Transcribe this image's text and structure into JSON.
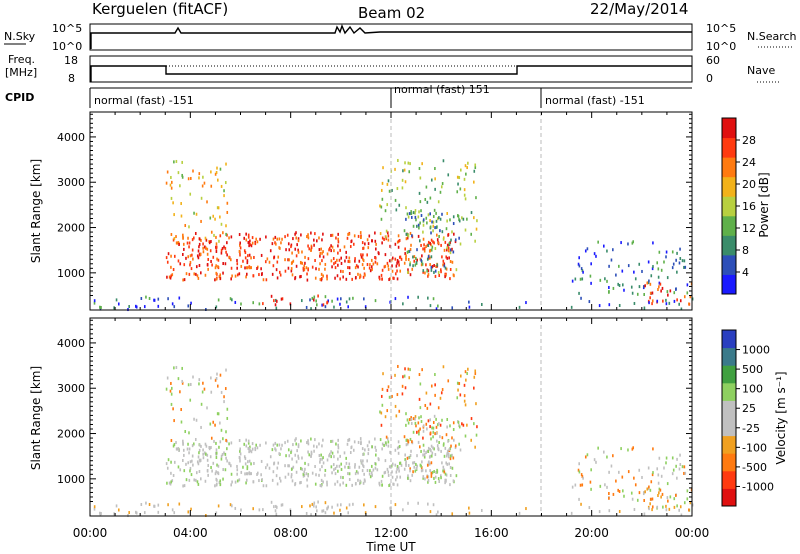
{
  "header": {
    "station": "Kerguelen (fitACF)",
    "beam": "Beam 02",
    "date": "22/May/2014"
  },
  "top_panels": {
    "nsky_label": "N.Sky",
    "nsky_ticks": [
      "10^5",
      "10^0"
    ],
    "nsearch_label": "N.Search",
    "freq_label": [
      "Freq.",
      "[MHz]"
    ],
    "freq_ticks": [
      "18",
      "8"
    ],
    "nave_label": "Nave",
    "nave_ticks": [
      "60",
      "0"
    ],
    "cpid_label": "CPID",
    "cpid_segments": [
      "normal (fast) -151",
      "normal (fast) 151",
      "normal (fast) -151"
    ]
  },
  "chart_data": [
    {
      "type": "heatmap",
      "name": "power",
      "ylabel": "Slant Range [km]",
      "ylim": [
        180,
        4550
      ],
      "yticks": [
        "1000",
        "2000",
        "3000",
        "4000"
      ],
      "xlabel": "Time UT",
      "xticks": [
        "00:00",
        "04:00",
        "08:00",
        "12:00",
        "16:00",
        "20:00",
        "00:00"
      ],
      "colorbar_label": "Power [dB]",
      "colorbar_ticks": [
        "4",
        "8",
        "12",
        "16",
        "20",
        "24",
        "28"
      ],
      "colors": [
        "#1a1aff",
        "#2d4fb8",
        "#3a8c6a",
        "#5fb04a",
        "#b8d040",
        "#f2b21a",
        "#ff7a10",
        "#ff3a10",
        "#e01010"
      ]
    },
    {
      "type": "heatmap",
      "name": "velocity",
      "ylabel": "Slant Range [km]",
      "ylim": [
        180,
        4550
      ],
      "yticks": [
        "1000",
        "2000",
        "3000",
        "4000"
      ],
      "colorbar_label": "Velocity [m s⁻¹]",
      "colorbar_ticks": [
        "1000",
        "500",
        "100",
        "25",
        "-25",
        "-100",
        "-500",
        "-1000"
      ],
      "colors": [
        "#2a3fc0",
        "#3a7a8a",
        "#40a040",
        "#8ed060",
        "#c0c0c0",
        "#c0c0c0",
        "#f0a020",
        "#ff7a10",
        "#ff3a10",
        "#e01010"
      ]
    }
  ]
}
